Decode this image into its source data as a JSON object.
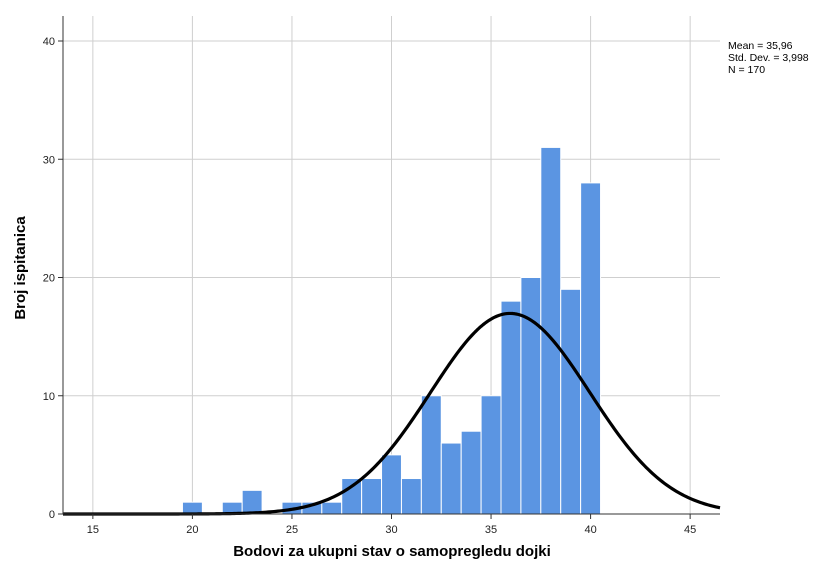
{
  "chart_data": {
    "type": "bar",
    "xlabel": "Bodovi za ukupni stav o samopregledu dojki",
    "ylabel": "Broj ispitanica",
    "xlim": [
      13.5,
      46.5
    ],
    "ylim": [
      0,
      40
    ],
    "x_ticks": [
      15,
      20,
      25,
      30,
      35,
      40,
      45
    ],
    "y_ticks": [
      0,
      10,
      20,
      30,
      40
    ],
    "bins": [
      {
        "x": 20,
        "value": 1
      },
      {
        "x": 21,
        "value": 0
      },
      {
        "x": 22,
        "value": 1
      },
      {
        "x": 23,
        "value": 2
      },
      {
        "x": 24,
        "value": 0
      },
      {
        "x": 25,
        "value": 1
      },
      {
        "x": 26,
        "value": 1
      },
      {
        "x": 27,
        "value": 1
      },
      {
        "x": 28,
        "value": 3
      },
      {
        "x": 29,
        "value": 3
      },
      {
        "x": 30,
        "value": 5
      },
      {
        "x": 31,
        "value": 3
      },
      {
        "x": 32,
        "value": 10
      },
      {
        "x": 33,
        "value": 6
      },
      {
        "x": 34,
        "value": 7
      },
      {
        "x": 35,
        "value": 10
      },
      {
        "x": 36,
        "value": 18
      },
      {
        "x": 37,
        "value": 20
      },
      {
        "x": 38,
        "value": 31
      },
      {
        "x": 39,
        "value": 19
      },
      {
        "x": 40,
        "value": 28
      }
    ],
    "normal_curve": {
      "mean": 35.96,
      "sd": 3.998,
      "n": 170,
      "bin_width": 1
    },
    "grid": true,
    "bar_color": "#5b95e2",
    "curve_color": "#000000",
    "stats_lines": [
      "Mean = 35,96",
      "Std. Dev. = 3,998",
      "N = 170"
    ]
  }
}
